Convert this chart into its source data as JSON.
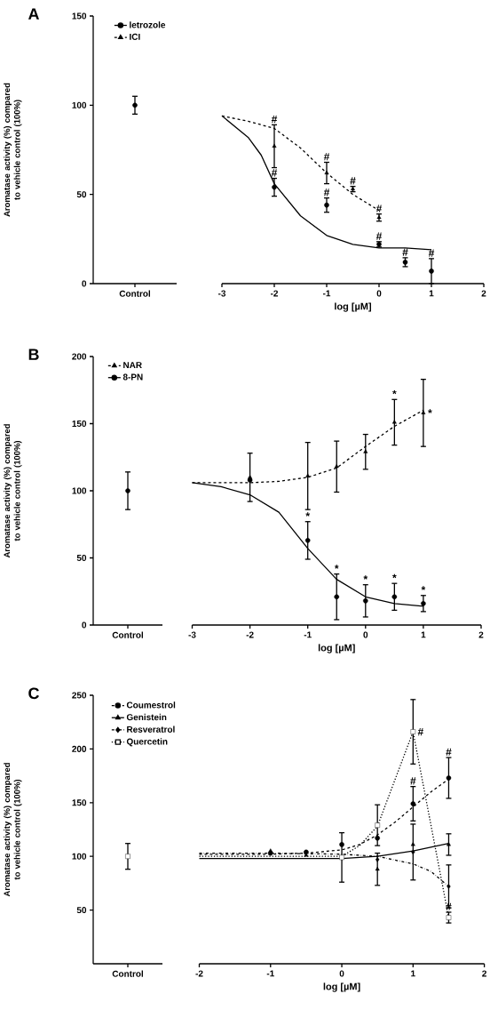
{
  "chart_data": [
    {
      "type": "scatter",
      "title": "A",
      "ylabel": "Aromatase activity (%) compared to vehicle control (100%)",
      "categories": [
        "Control"
      ],
      "ylim": [
        0,
        150
      ],
      "yticks": [
        0,
        50,
        100,
        150
      ],
      "series": [
        {
          "color": "#000000",
          "marker": "circle",
          "values": [
            100
          ],
          "errors": [
            5
          ]
        }
      ]
    },
    {
      "type": "scatter",
      "xlabel": "log [µM]",
      "xlim": [
        -3,
        2
      ],
      "xticks": [
        -3,
        -2,
        -1,
        0,
        1,
        2
      ],
      "ylim": [
        0,
        150
      ],
      "tick_labels": "x",
      "legend": "top left",
      "annotations": [
        {
          "text": "#",
          "x": -2,
          "y": 54
        },
        {
          "text": "#",
          "x": -1,
          "y": 44
        },
        {
          "text": "#",
          "x": 0,
          "y": 22
        },
        {
          "text": "#",
          "x": 0.5,
          "y": 12
        },
        {
          "text": "#",
          "x": 1,
          "y": 7
        },
        {
          "text": "#",
          "x": -2,
          "y": 77
        },
        {
          "text": "#",
          "x": -1,
          "y": 62
        },
        {
          "text": "#",
          "x": -0.5,
          "y": 53
        },
        {
          "text": "#",
          "x": 0,
          "y": 37
        }
      ],
      "series": [
        {
          "name": "letrozole",
          "color": "#000000",
          "marker": "circle",
          "x": [
            -2,
            -1,
            0,
            0.5,
            1
          ],
          "values": [
            54,
            44,
            22,
            12,
            7
          ],
          "errors": [
            5,
            4,
            1.5,
            2.5,
            7
          ]
        },
        {
          "type": "line",
          "color": "#000000",
          "line_style": "solid",
          "x": [
            -3,
            -2.5,
            -2.25,
            -2,
            -1.5,
            -1,
            -0.5,
            0,
            0.5,
            1
          ],
          "values": [
            94,
            82,
            72,
            56,
            38,
            27,
            22,
            20,
            20,
            19
          ]
        },
        {
          "name": "ICI",
          "color": "#000000",
          "marker": "triangle",
          "x": [
            -2,
            -1,
            -0.5,
            0
          ],
          "values": [
            77,
            62,
            53,
            37
          ],
          "errors": [
            12,
            6,
            1.5,
            2
          ]
        },
        {
          "type": "line",
          "color": "#000000",
          "line_style": "dashed",
          "x": [
            -3,
            -2.5,
            -2,
            -1.5,
            -1,
            -0.5,
            0
          ],
          "values": [
            94,
            91,
            87,
            76,
            62,
            50,
            41
          ]
        }
      ]
    },
    {
      "type": "scatter",
      "title": "B",
      "ylabel": "Aromatase activity (%) compared to vehicle control (100%)",
      "categories": [
        "Control"
      ],
      "ylim": [
        0,
        200
      ],
      "yticks": [
        0,
        50,
        100,
        150,
        200
      ],
      "series": [
        {
          "color": "#000000",
          "marker": "circle",
          "values": [
            100
          ],
          "errors": [
            14
          ]
        }
      ]
    },
    {
      "type": "scatter",
      "xlabel": "log [µM]",
      "xlim": [
        -3,
        2
      ],
      "xticks": [
        -3,
        -2,
        -1,
        0,
        1,
        2
      ],
      "ylim": [
        0,
        200
      ],
      "tick_labels": "x",
      "legend": "top left",
      "annotations": [
        {
          "text": "*",
          "x": -1,
          "y": 63
        },
        {
          "text": "*",
          "x": -0.5,
          "y": 21
        },
        {
          "text": "*",
          "x": 0,
          "y": 18
        },
        {
          "text": "*",
          "x": 0.5,
          "y": 21
        },
        {
          "text": "*",
          "x": 1,
          "y": 16
        },
        {
          "text": "*",
          "x": 0.5,
          "y": 151
        },
        {
          "text": "*",
          "x": 1,
          "y": 158
        }
      ],
      "series": [
        {
          "name": "NAR",
          "color": "#000000",
          "marker": "triangle",
          "x": [
            -2,
            -1,
            -0.5,
            0,
            0.5,
            1
          ],
          "values": [
            110,
            111,
            118,
            129,
            151,
            158
          ],
          "errors": [
            18,
            25,
            19,
            13,
            17,
            25
          ]
        },
        {
          "type": "line",
          "color": "#000000",
          "line_style": "dashed",
          "x": [
            -3,
            -2.5,
            -2,
            -1.5,
            -1,
            -0.5,
            0,
            0.5,
            1
          ],
          "values": [
            106,
            106,
            106,
            107,
            110,
            117,
            133,
            148,
            160
          ]
        },
        {
          "name": "8-PN",
          "color": "#000000",
          "marker": "circle",
          "x": [
            -2,
            -1,
            -0.5,
            0,
            0.5,
            1
          ],
          "values": [
            108,
            63,
            21,
            18,
            21,
            16
          ],
          "errors": [
            null,
            14,
            17,
            12,
            10,
            6
          ]
        },
        {
          "type": "line",
          "color": "#000000",
          "line_style": "solid",
          "x": [
            -3,
            -2.5,
            -2,
            -1.5,
            -1,
            -0.5,
            0,
            0.5,
            1
          ],
          "values": [
            106,
            103,
            97,
            84,
            57,
            34,
            21,
            16,
            14
          ]
        }
      ]
    },
    {
      "type": "scatter",
      "title": "C",
      "ylabel": "Aromatase activity (%) compared to vehicle control (100%)",
      "categories": [
        "Control"
      ],
      "ylim": [
        0,
        250
      ],
      "yticks": [
        50,
        100,
        150,
        200,
        250
      ],
      "series": [
        {
          "color": "#000000",
          "marker": "square",
          "values": [
            100
          ],
          "errors": [
            12
          ]
        }
      ]
    },
    {
      "type": "scatter",
      "xlabel": "log [µM]",
      "xlim": [
        -2,
        2
      ],
      "xticks": [
        -2,
        -1,
        0,
        1,
        2
      ],
      "ylim": [
        0,
        250
      ],
      "tick_labels": "x",
      "legend": "top left",
      "annotations": [
        {
          "text": "#",
          "x": 1,
          "y": 216
        },
        {
          "text": "#",
          "x": 1.5,
          "y": 173
        },
        {
          "text": "#",
          "x": 1,
          "y": 149
        },
        {
          "text": "#",
          "x": 1.5,
          "y": 43
        }
      ],
      "series": [
        {
          "name": "Coumestrol",
          "color": "#000000",
          "marker": "circle",
          "x": [
            -1,
            -0.5,
            0,
            0.5,
            1,
            1.5
          ],
          "values": [
            103,
            104,
            111,
            117,
            149,
            173
          ],
          "errors": [
            null,
            null,
            null,
            null,
            16,
            19
          ]
        },
        {
          "type": "line",
          "color": "#000000",
          "line_style": "dashed",
          "x": [
            -2,
            -1,
            -0.5,
            0,
            0.25,
            0.5,
            0.75,
            1,
            1.25,
            1.5
          ],
          "values": [
            102,
            102,
            103,
            106,
            111,
            120,
            132,
            146,
            160,
            172
          ]
        },
        {
          "name": "Genistein",
          "color": "#000000",
          "marker": "triangle",
          "x": [
            -1,
            -0.5,
            0.5,
            1,
            1.5
          ],
          "values": [
            105,
            101,
            88,
            111,
            111
          ],
          "errors": [
            null,
            null,
            15,
            null,
            10
          ]
        },
        {
          "type": "line",
          "color": "#000000",
          "line_style": "solid",
          "x": [
            -2,
            -1,
            0,
            0.5,
            1,
            1.5
          ],
          "values": [
            98,
            98,
            98,
            100,
            105,
            112
          ]
        },
        {
          "name": "Resveratrol",
          "color": "#000000",
          "marker": "diamond",
          "x": [
            0.5,
            1,
            1.5
          ],
          "values": [
            97,
            104,
            72
          ],
          "errors": [
            null,
            26,
            20
          ]
        },
        {
          "type": "line",
          "color": "#000000",
          "line_style": "dashdot",
          "x": [
            -2,
            -1,
            0,
            0.5,
            1,
            1.25,
            1.5
          ],
          "values": [
            103,
            103,
            102,
            100,
            93,
            86,
            72
          ]
        },
        {
          "name": "Quercetin",
          "color": "#000000",
          "marker": "square",
          "x": [
            0,
            0.5,
            1,
            1.5
          ],
          "values": [
            99,
            129,
            216,
            43
          ],
          "errors": [
            23,
            19,
            30,
            5
          ]
        },
        {
          "type": "line",
          "color": "#000000",
          "line_style": "dotted",
          "x": [
            -2,
            -1,
            0,
            0.25,
            0.5,
            1,
            1.5
          ],
          "values": [
            100,
            100,
            100,
            110,
            128,
            216,
            43
          ]
        }
      ]
    }
  ]
}
